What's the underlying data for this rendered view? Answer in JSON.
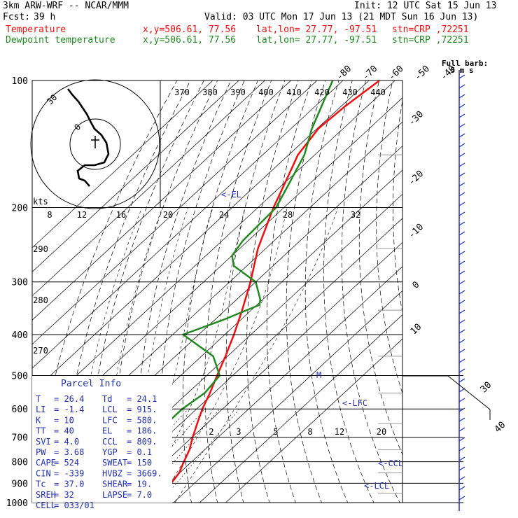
{
  "header": {
    "model": "3km ARW-WRF -- NCAR/MMM",
    "init": "Init: 12 UTC Sat 15 Jun 13",
    "fcst_label": "Fcst:",
    "fcst_value": "39 h",
    "valid": "Valid: 03 UTC Mon 17 Jun 13 (21 MDT Sun 16 Jun 13)",
    "series": [
      {
        "name": "Temperature",
        "xy": "x,y=506.61, 77.56",
        "latlon": "lat,lon= 27.77, -97.51",
        "stn": "stn=CRP ,72251",
        "color": "#ee1010"
      },
      {
        "name": "Dewpoint temperature",
        "xy": "x,y=506.61, 77.56",
        "latlon": "lat,lon= 27.77, -97.51",
        "stn": "stn=CRP ,72251",
        "color": "#208a20"
      }
    ]
  },
  "barb_legend": {
    "line1": "Full barb:",
    "line2": "5 m s"
  },
  "markers": {
    "el": "<-EL",
    "lfc": "<-LFC",
    "ccl": "<-CCL",
    "lcl": "<-LCL",
    "m": "M"
  },
  "parcel_info": {
    "title": "Parcel Info",
    "rows": [
      [
        "T",
        "26.4",
        "Td",
        "24.1"
      ],
      [
        "LI",
        "-1.4",
        "LCL",
        "915."
      ],
      [
        "K",
        "10",
        "LFC",
        "580."
      ],
      [
        "TT",
        "40",
        "EL",
        "186."
      ],
      [
        "SVI",
        "4.0",
        "CCL",
        "809."
      ],
      [
        "PW",
        "3.68",
        "YGP",
        "0.1"
      ],
      [
        "CAPE",
        "524",
        "SWEAT",
        "150"
      ],
      [
        "CIN",
        "-339",
        "HVBZ",
        "3669."
      ],
      [
        "Tc",
        "37.0",
        "SHEAR",
        "19."
      ],
      [
        "SREH",
        "32",
        "LAPSE",
        "7.0"
      ],
      [
        "CELL",
        "033/01",
        "",
        ""
      ]
    ]
  },
  "hodograph": {
    "label_30": "30",
    "label_0": "0",
    "units": "kts"
  },
  "chart_data": {
    "type": "line",
    "title": "",
    "skewt": true,
    "pressure_levels_hpa": [
      100,
      200,
      300,
      400,
      500,
      600,
      700,
      800,
      900,
      1000
    ],
    "pressure_tick_labels": [
      "100",
      "200",
      "300",
      "400",
      "500",
      "600",
      "700",
      "800",
      "900",
      "1000"
    ],
    "isotherm_labels_c": [
      "-80",
      "-70",
      "-60",
      "-50",
      "-40",
      "-30",
      "-20",
      "-10",
      "0",
      "10",
      "30",
      "40"
    ],
    "theta_e_labels_k": [
      "370",
      "380",
      "390",
      "400",
      "410",
      "420",
      "430",
      "440"
    ],
    "hodo_speed_labels_kts": [
      "8",
      "12",
      "16",
      "20",
      "24",
      "28",
      "32"
    ],
    "theta_labels_k": [
      "290",
      "280",
      "270"
    ],
    "mixing_ratio_labels": [
      "2",
      "3",
      "5",
      "8",
      "12",
      "20"
    ],
    "series": [
      {
        "name": "Temperature",
        "color": "#ee1010",
        "points": [
          [
            1000,
            26.4
          ],
          [
            980,
            25.0
          ],
          [
            950,
            24.6
          ],
          [
            930,
            23.2
          ],
          [
            900,
            21.0
          ],
          [
            880,
            20.6
          ],
          [
            850,
            19.8
          ],
          [
            800,
            17.0
          ],
          [
            750,
            14.2
          ],
          [
            700,
            10.2
          ],
          [
            650,
            6.3
          ],
          [
            600,
            2.2
          ],
          [
            550,
            -1.5
          ],
          [
            500,
            -6.0
          ],
          [
            450,
            -10.8
          ],
          [
            400,
            -16.5
          ],
          [
            350,
            -23.5
          ],
          [
            300,
            -32.0
          ],
          [
            250,
            -43.0
          ],
          [
            200,
            -54.0
          ],
          [
            170,
            -61.0
          ],
          [
            150,
            -66.5
          ],
          [
            130,
            -69.5
          ],
          [
            115,
            -68.5
          ],
          [
            100,
            -66.0
          ]
        ]
      },
      {
        "name": "Dewpoint temperature",
        "color": "#208a20",
        "points": [
          [
            1000,
            24.1
          ],
          [
            980,
            23.2
          ],
          [
            950,
            20.5
          ],
          [
            930,
            20.5
          ],
          [
            900,
            19.0
          ],
          [
            880,
            18.0
          ],
          [
            850,
            15.0
          ],
          [
            800,
            6.0
          ],
          [
            750,
            0.0
          ],
          [
            700,
            -6.0
          ],
          [
            650,
            -5.5
          ],
          [
            600,
            -5.5
          ],
          [
            550,
            -3.5
          ],
          [
            500,
            -5.0
          ],
          [
            450,
            -15.5
          ],
          [
            400,
            -36.0
          ],
          [
            370,
            -27.0
          ],
          [
            340,
            -19.0
          ],
          [
            330,
            -21.0
          ],
          [
            300,
            -30.0
          ],
          [
            275,
            -45.0
          ],
          [
            260,
            -50.0
          ],
          [
            240,
            -52.0
          ],
          [
            220,
            -52.5
          ],
          [
            200,
            -53.0
          ],
          [
            180,
            -57.0
          ],
          [
            150,
            -64.0
          ],
          [
            130,
            -72.0
          ],
          [
            100,
            -84.0
          ]
        ]
      }
    ],
    "wind_barb_count": 44
  }
}
